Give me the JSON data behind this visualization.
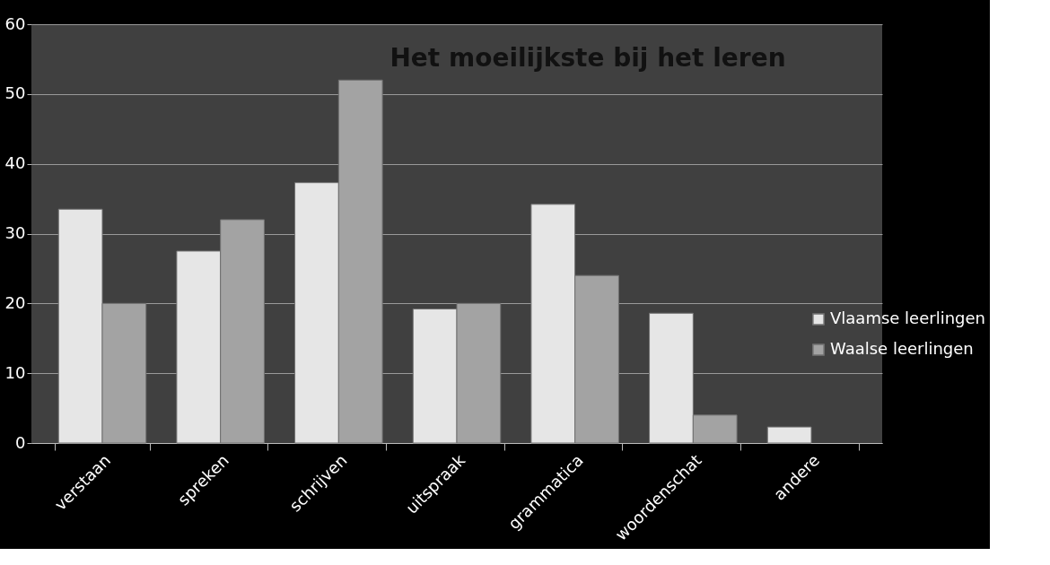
{
  "chart_data": {
    "type": "bar",
    "title": "Het moeilijkste bij het leren",
    "categories": [
      "verstaan",
      "spreken",
      "schrijven",
      "uitspraak",
      "grammatica",
      "woordenschat",
      "andere"
    ],
    "series": [
      {
        "name": "Vlaamse leerlingen",
        "color": "#e6e6e6",
        "values": [
          33.5,
          27.5,
          37.3,
          19.2,
          34.2,
          18.6,
          2.3
        ]
      },
      {
        "name": "Waalse leerlingen",
        "color": "#a3a3a3",
        "values": [
          20,
          32,
          52,
          20,
          24,
          4,
          null
        ]
      }
    ],
    "ylim": [
      0,
      60
    ],
    "yticks": [
      0,
      10,
      20,
      30,
      40,
      50,
      60
    ],
    "grid": "y",
    "legend": "right"
  }
}
